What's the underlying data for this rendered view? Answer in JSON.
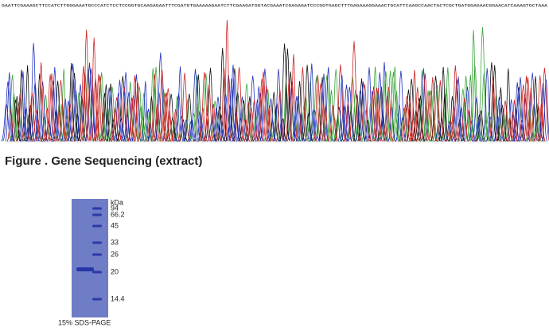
{
  "sequence": "GAATTCGAAAGCTTCCATCTTGGGAAATGCCCATCTCCTCCGGTGCAAGAGAATTTCGATGTGAAAAAGAATCTTCGAAGATGGTACGAAATCGAGAGATCCCGGTGAGCTTTGAGAAAGGAAACTGCATTCAAGCCAACTACTCGCTGATGGAGAACGGAACATCAAAGTGCTAAA",
  "figure_caption": "Figure . Gene Sequencing (extract)",
  "gel": {
    "unit": "kDa",
    "markers": [
      "94",
      "66.2",
      "45",
      "33",
      "26",
      "20",
      "14.4"
    ],
    "caption": "15% SDS-PAGE"
  }
}
